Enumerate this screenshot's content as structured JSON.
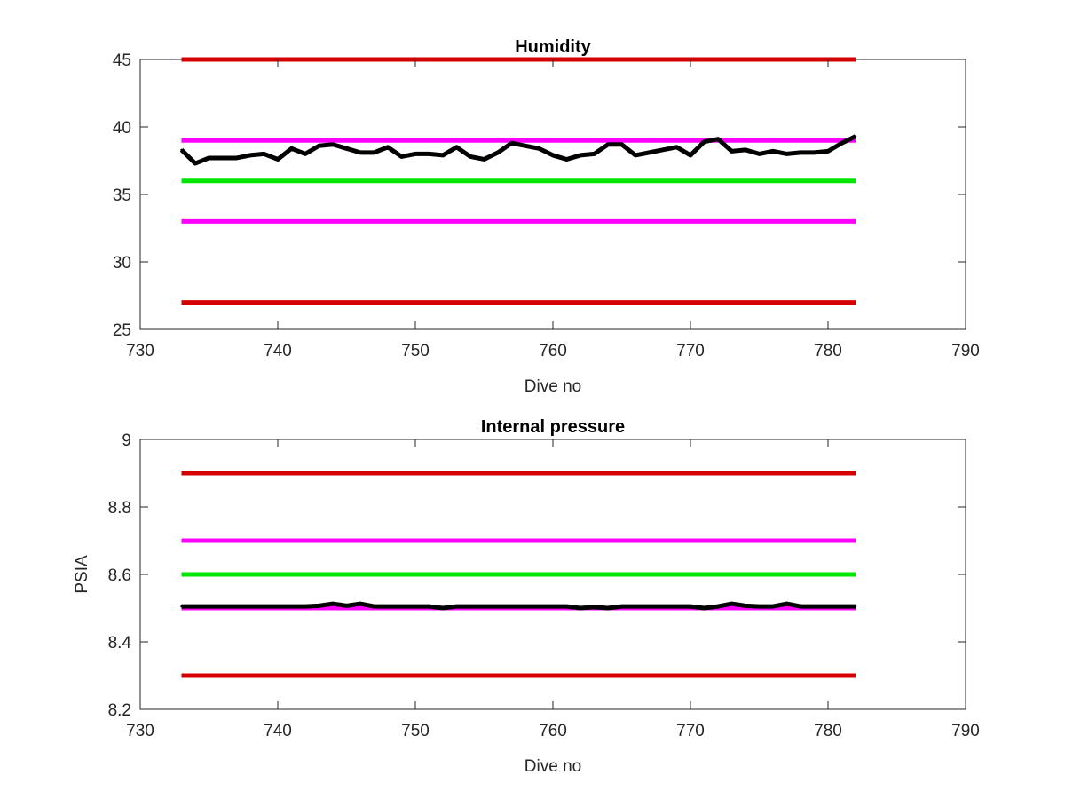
{
  "chart_data": [
    {
      "type": "line",
      "title": "Humidity",
      "xlabel": "Dive no",
      "ylabel": "",
      "xlim": [
        730,
        790
      ],
      "ylim": [
        25,
        45
      ],
      "xticks": [
        "730",
        "740",
        "750",
        "760",
        "770",
        "780",
        "790"
      ],
      "yticks": [
        "25",
        "30",
        "35",
        "40",
        "45"
      ],
      "grid": false,
      "x_extent": [
        733,
        782
      ],
      "reference_lines": [
        {
          "value": 45,
          "color": "#d40000"
        },
        {
          "value": 39,
          "color": "#ff00ff"
        },
        {
          "value": 36,
          "color": "#00e600"
        },
        {
          "value": 33,
          "color": "#ff00ff"
        },
        {
          "value": 27,
          "color": "#d40000"
        }
      ],
      "series": [
        {
          "color": "#000000",
          "x": [
            733,
            734,
            735,
            736,
            737,
            738,
            739,
            740,
            741,
            742,
            743,
            744,
            745,
            746,
            747,
            748,
            749,
            750,
            751,
            752,
            753,
            754,
            755,
            756,
            757,
            758,
            759,
            760,
            761,
            762,
            763,
            764,
            765,
            766,
            767,
            768,
            769,
            770,
            771,
            772,
            773,
            774,
            775,
            776,
            777,
            778,
            779,
            780,
            781,
            782
          ],
          "values": [
            38.3,
            37.3,
            37.7,
            37.7,
            37.7,
            37.9,
            38.0,
            37.6,
            38.4,
            38.0,
            38.6,
            38.7,
            38.4,
            38.1,
            38.1,
            38.5,
            37.8,
            38.0,
            38.0,
            37.9,
            38.5,
            37.8,
            37.6,
            38.1,
            38.8,
            38.6,
            38.4,
            37.9,
            37.6,
            37.9,
            38.0,
            38.7,
            38.7,
            37.9,
            38.1,
            38.3,
            38.5,
            37.9,
            38.9,
            39.1,
            38.2,
            38.3,
            38.0,
            38.2,
            38.0,
            38.1,
            38.1,
            38.2,
            38.8,
            39.3
          ]
        }
      ]
    },
    {
      "type": "line",
      "title": "Internal pressure",
      "xlabel": "Dive no",
      "ylabel": "PSIA",
      "xlim": [
        730,
        790
      ],
      "ylim": [
        8.2,
        9
      ],
      "xticks": [
        "730",
        "740",
        "750",
        "760",
        "770",
        "780",
        "790"
      ],
      "yticks": [
        "8.2",
        "8.4",
        "8.6",
        "8.8",
        "9"
      ],
      "grid": false,
      "x_extent": [
        733,
        782
      ],
      "reference_lines": [
        {
          "value": 8.9,
          "color": "#d40000"
        },
        {
          "value": 8.7,
          "color": "#ff00ff"
        },
        {
          "value": 8.6,
          "color": "#00e600"
        },
        {
          "value": 8.5,
          "color": "#ff00ff"
        },
        {
          "value": 8.3,
          "color": "#d40000"
        }
      ],
      "series": [
        {
          "color": "#000000",
          "x": [
            733,
            734,
            735,
            736,
            737,
            738,
            739,
            740,
            741,
            742,
            743,
            744,
            745,
            746,
            747,
            748,
            749,
            750,
            751,
            752,
            753,
            754,
            755,
            756,
            757,
            758,
            759,
            760,
            761,
            762,
            763,
            764,
            765,
            766,
            767,
            768,
            769,
            770,
            771,
            772,
            773,
            774,
            775,
            776,
            777,
            778,
            779,
            780,
            781,
            782
          ],
          "values": [
            8.505,
            8.505,
            8.505,
            8.505,
            8.505,
            8.505,
            8.505,
            8.505,
            8.505,
            8.505,
            8.507,
            8.513,
            8.507,
            8.513,
            8.505,
            8.505,
            8.505,
            8.505,
            8.505,
            8.5,
            8.505,
            8.505,
            8.505,
            8.505,
            8.505,
            8.505,
            8.505,
            8.505,
            8.505,
            8.5,
            8.503,
            8.5,
            8.505,
            8.505,
            8.505,
            8.505,
            8.505,
            8.505,
            8.5,
            8.505,
            8.513,
            8.507,
            8.505,
            8.505,
            8.513,
            8.505,
            8.505,
            8.505,
            8.505,
            8.505
          ]
        }
      ]
    }
  ]
}
